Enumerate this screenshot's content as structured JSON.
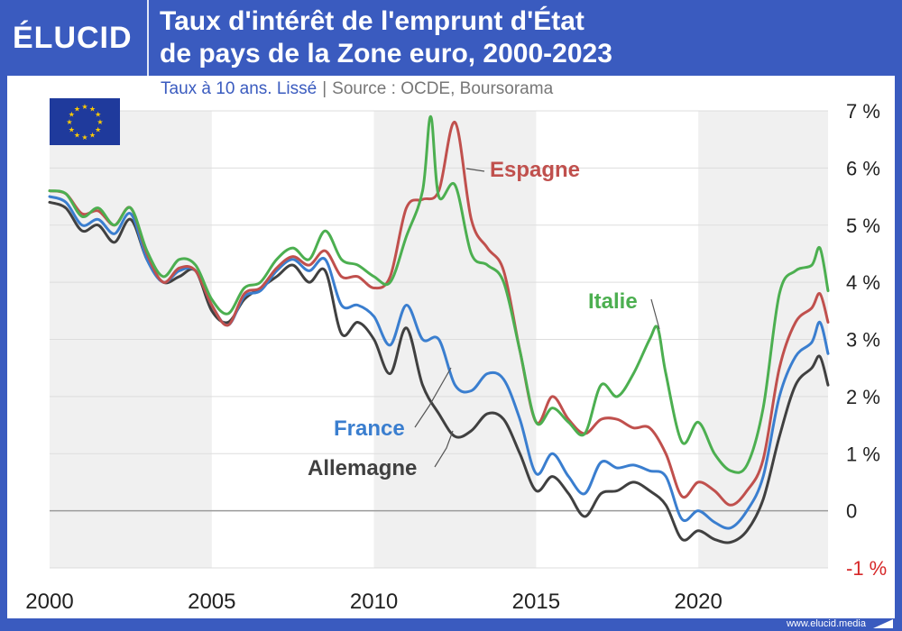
{
  "brand": {
    "logo_text": "ÉLUCID",
    "website": "www.elucid.media"
  },
  "header": {
    "title_line1": "Taux d'intérêt de l'emprunt d'État",
    "title_line2": "de pays de la Zone euro, 2000-2023"
  },
  "subtitle": {
    "description": "Taux à 10 ans. Lissé",
    "separator": "|",
    "source": "Source : OCDE, Boursorama"
  },
  "icons": {
    "flag": "eu-flag-icon"
  },
  "colors": {
    "brand_blue": "#3a5bbf",
    "allemagne": "#404040",
    "france": "#3a7ecf",
    "espagne": "#c0504d",
    "italie": "#4caf50",
    "negative_tick": "#d62728"
  },
  "chart_data": {
    "type": "line",
    "title": "Taux d'intérêt de l'emprunt d'État de pays de la Zone euro, 2000-2023",
    "subtitle": "Taux à 10 ans. Lissé",
    "xlabel": "",
    "ylabel": "",
    "xlim": [
      2000,
      2024
    ],
    "ylim": [
      -1,
      7
    ],
    "x_ticks": [
      2000,
      2005,
      2010,
      2015,
      2020
    ],
    "y_ticks": [
      {
        "value": 7,
        "label": "7 %"
      },
      {
        "value": 6,
        "label": "6 %"
      },
      {
        "value": 5,
        "label": "5 %"
      },
      {
        "value": 4,
        "label": "4 %"
      },
      {
        "value": 3,
        "label": "3 %"
      },
      {
        "value": 2,
        "label": "2 %"
      },
      {
        "value": 1,
        "label": "1 %"
      },
      {
        "value": 0,
        "label": "0"
      },
      {
        "value": -1,
        "label": "-1 %"
      }
    ],
    "shaded_bands": [
      [
        2000,
        2005
      ],
      [
        2010,
        2015
      ],
      [
        2020,
        2024
      ]
    ],
    "grid": true,
    "series": [
      {
        "name": "Allemagne",
        "color": "#404040",
        "points": [
          [
            2000,
            5.4
          ],
          [
            2000.5,
            5.3
          ],
          [
            2001,
            4.9
          ],
          [
            2001.5,
            5.0
          ],
          [
            2002,
            4.7
          ],
          [
            2002.5,
            5.1
          ],
          [
            2003,
            4.4
          ],
          [
            2003.5,
            4.0
          ],
          [
            2004,
            4.1
          ],
          [
            2004.5,
            4.2
          ],
          [
            2005,
            3.5
          ],
          [
            2005.5,
            3.3
          ],
          [
            2006,
            3.7
          ],
          [
            2006.5,
            3.9
          ],
          [
            2007,
            4.1
          ],
          [
            2007.5,
            4.3
          ],
          [
            2008,
            4.0
          ],
          [
            2008.5,
            4.2
          ],
          [
            2009,
            3.1
          ],
          [
            2009.5,
            3.3
          ],
          [
            2010,
            3.0
          ],
          [
            2010.5,
            2.4
          ],
          [
            2011,
            3.2
          ],
          [
            2011.5,
            2.2
          ],
          [
            2012,
            1.7
          ],
          [
            2012.5,
            1.3
          ],
          [
            2013,
            1.4
          ],
          [
            2013.5,
            1.7
          ],
          [
            2014,
            1.6
          ],
          [
            2014.5,
            1.0
          ],
          [
            2015,
            0.35
          ],
          [
            2015.5,
            0.6
          ],
          [
            2016,
            0.3
          ],
          [
            2016.5,
            -0.1
          ],
          [
            2017,
            0.3
          ],
          [
            2017.5,
            0.35
          ],
          [
            2018,
            0.5
          ],
          [
            2018.5,
            0.35
          ],
          [
            2019,
            0.1
          ],
          [
            2019.5,
            -0.5
          ],
          [
            2020,
            -0.35
          ],
          [
            2020.5,
            -0.5
          ],
          [
            2021,
            -0.55
          ],
          [
            2021.5,
            -0.35
          ],
          [
            2022,
            0.2
          ],
          [
            2022.5,
            1.3
          ],
          [
            2023,
            2.2
          ],
          [
            2023.5,
            2.5
          ],
          [
            2023.75,
            2.7
          ],
          [
            2024,
            2.2
          ]
        ]
      },
      {
        "name": "France",
        "color": "#3a7ecf",
        "points": [
          [
            2000,
            5.5
          ],
          [
            2000.5,
            5.4
          ],
          [
            2001,
            5.0
          ],
          [
            2001.5,
            5.1
          ],
          [
            2002,
            4.85
          ],
          [
            2002.5,
            5.2
          ],
          [
            2003,
            4.4
          ],
          [
            2003.5,
            4.0
          ],
          [
            2004,
            4.2
          ],
          [
            2004.5,
            4.2
          ],
          [
            2005,
            3.6
          ],
          [
            2005.5,
            3.25
          ],
          [
            2006,
            3.75
          ],
          [
            2006.5,
            3.85
          ],
          [
            2007,
            4.2
          ],
          [
            2007.5,
            4.4
          ],
          [
            2008,
            4.2
          ],
          [
            2008.5,
            4.4
          ],
          [
            2009,
            3.6
          ],
          [
            2009.5,
            3.6
          ],
          [
            2010,
            3.4
          ],
          [
            2010.5,
            2.9
          ],
          [
            2011,
            3.6
          ],
          [
            2011.5,
            3.0
          ],
          [
            2012,
            3.0
          ],
          [
            2012.5,
            2.2
          ],
          [
            2013,
            2.1
          ],
          [
            2013.5,
            2.4
          ],
          [
            2014,
            2.3
          ],
          [
            2014.5,
            1.6
          ],
          [
            2015,
            0.65
          ],
          [
            2015.5,
            1.0
          ],
          [
            2016,
            0.6
          ],
          [
            2016.5,
            0.3
          ],
          [
            2017,
            0.85
          ],
          [
            2017.5,
            0.75
          ],
          [
            2018,
            0.8
          ],
          [
            2018.5,
            0.7
          ],
          [
            2019,
            0.6
          ],
          [
            2019.5,
            -0.15
          ],
          [
            2020,
            0.0
          ],
          [
            2020.5,
            -0.2
          ],
          [
            2021,
            -0.3
          ],
          [
            2021.5,
            0.0
          ],
          [
            2022,
            0.6
          ],
          [
            2022.5,
            2.0
          ],
          [
            2023,
            2.7
          ],
          [
            2023.5,
            2.95
          ],
          [
            2023.75,
            3.3
          ],
          [
            2024,
            2.75
          ]
        ]
      },
      {
        "name": "Espagne",
        "color": "#c0504d",
        "points": [
          [
            2000,
            5.6
          ],
          [
            2000.5,
            5.55
          ],
          [
            2001,
            5.2
          ],
          [
            2001.5,
            5.25
          ],
          [
            2002,
            5.0
          ],
          [
            2002.5,
            5.3
          ],
          [
            2003,
            4.5
          ],
          [
            2003.5,
            4.0
          ],
          [
            2004,
            4.25
          ],
          [
            2004.5,
            4.2
          ],
          [
            2005,
            3.6
          ],
          [
            2005.5,
            3.25
          ],
          [
            2006,
            3.8
          ],
          [
            2006.5,
            3.9
          ],
          [
            2007,
            4.25
          ],
          [
            2007.5,
            4.45
          ],
          [
            2008,
            4.3
          ],
          [
            2008.5,
            4.55
          ],
          [
            2009,
            4.1
          ],
          [
            2009.5,
            4.1
          ],
          [
            2010,
            3.9
          ],
          [
            2010.5,
            4.1
          ],
          [
            2011,
            5.3
          ],
          [
            2011.5,
            5.45
          ],
          [
            2012,
            5.6
          ],
          [
            2012.5,
            6.8
          ],
          [
            2013,
            5.1
          ],
          [
            2013.5,
            4.6
          ],
          [
            2014,
            4.2
          ],
          [
            2014.5,
            2.8
          ],
          [
            2015,
            1.55
          ],
          [
            2015.5,
            2.0
          ],
          [
            2016,
            1.6
          ],
          [
            2016.5,
            1.35
          ],
          [
            2017,
            1.6
          ],
          [
            2017.5,
            1.6
          ],
          [
            2018,
            1.45
          ],
          [
            2018.5,
            1.45
          ],
          [
            2019,
            1.0
          ],
          [
            2019.5,
            0.25
          ],
          [
            2020,
            0.5
          ],
          [
            2020.5,
            0.35
          ],
          [
            2021,
            0.1
          ],
          [
            2021.5,
            0.35
          ],
          [
            2022,
            0.9
          ],
          [
            2022.5,
            2.5
          ],
          [
            2023,
            3.3
          ],
          [
            2023.5,
            3.55
          ],
          [
            2023.75,
            3.8
          ],
          [
            2024,
            3.3
          ]
        ]
      },
      {
        "name": "Italie",
        "color": "#4caf50",
        "points": [
          [
            2000,
            5.6
          ],
          [
            2000.5,
            5.55
          ],
          [
            2001,
            5.15
          ],
          [
            2001.5,
            5.3
          ],
          [
            2002,
            5.0
          ],
          [
            2002.5,
            5.3
          ],
          [
            2003,
            4.55
          ],
          [
            2003.5,
            4.1
          ],
          [
            2004,
            4.4
          ],
          [
            2004.5,
            4.3
          ],
          [
            2005,
            3.7
          ],
          [
            2005.5,
            3.45
          ],
          [
            2006,
            3.9
          ],
          [
            2006.5,
            4.0
          ],
          [
            2007,
            4.4
          ],
          [
            2007.5,
            4.6
          ],
          [
            2008,
            4.4
          ],
          [
            2008.5,
            4.9
          ],
          [
            2009,
            4.4
          ],
          [
            2009.5,
            4.3
          ],
          [
            2010,
            4.1
          ],
          [
            2010.5,
            4.0
          ],
          [
            2011,
            4.8
          ],
          [
            2011.5,
            5.6
          ],
          [
            2011.75,
            6.9
          ],
          [
            2012,
            5.5
          ],
          [
            2012.5,
            5.7
          ],
          [
            2013,
            4.5
          ],
          [
            2013.5,
            4.3
          ],
          [
            2014,
            4.0
          ],
          [
            2014.5,
            2.8
          ],
          [
            2015,
            1.55
          ],
          [
            2015.5,
            1.8
          ],
          [
            2016,
            1.55
          ],
          [
            2016.5,
            1.35
          ],
          [
            2017,
            2.2
          ],
          [
            2017.5,
            2.0
          ],
          [
            2018,
            2.4
          ],
          [
            2018.5,
            3.0
          ],
          [
            2018.75,
            3.2
          ],
          [
            2019,
            2.4
          ],
          [
            2019.5,
            1.2
          ],
          [
            2020,
            1.55
          ],
          [
            2020.5,
            1.0
          ],
          [
            2021,
            0.7
          ],
          [
            2021.5,
            0.8
          ],
          [
            2022,
            1.8
          ],
          [
            2022.5,
            3.8
          ],
          [
            2023,
            4.2
          ],
          [
            2023.5,
            4.3
          ],
          [
            2023.75,
            4.6
          ],
          [
            2024,
            3.85
          ]
        ]
      }
    ],
    "annotations": [
      {
        "series": "Espagne",
        "text": "Espagne"
      },
      {
        "series": "Italie",
        "text": "Italie"
      },
      {
        "series": "France",
        "text": "France"
      },
      {
        "series": "Allemagne",
        "text": "Allemagne"
      }
    ]
  }
}
